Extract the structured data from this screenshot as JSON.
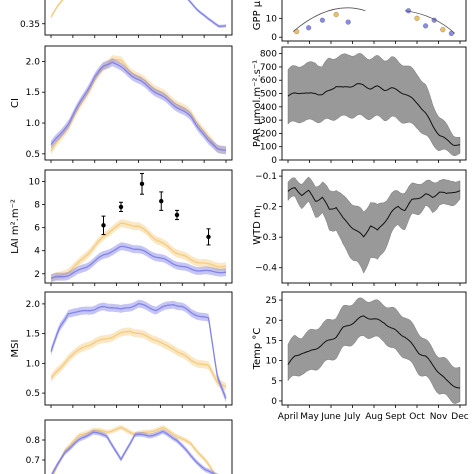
{
  "chart_data": [
    {
      "id": "p_top_left",
      "type": "line",
      "ylabel": "",
      "ytick_labels": [
        "0.35"
      ],
      "ylim": [
        0.3,
        0.5
      ],
      "yticks": [
        0.35
      ],
      "series": [
        {
          "color": "#f5c97a",
          "x": [
            0.0,
            0.04,
            0.08,
            0.12,
            0.16
          ],
          "y": [
            0.38,
            0.43,
            0.47,
            0.49,
            0.5
          ]
        },
        {
          "color": "#7f7fe8",
          "x": [
            0.72,
            0.78,
            0.84,
            0.9,
            0.96
          ],
          "y": [
            0.5,
            0.46,
            0.41,
            0.37,
            0.34
          ]
        }
      ]
    },
    {
      "id": "p_ci",
      "type": "line",
      "ylabel": "CI",
      "ylim": [
        0.4,
        2.25
      ],
      "yticks": [
        0.5,
        1.0,
        1.5,
        2.0
      ],
      "ytick_labels": [
        "0.5",
        "1.0",
        "1.5",
        "2.0"
      ],
      "series": [
        {
          "color": "#f5c97a",
          "x": [
            0.0,
            0.05,
            0.1,
            0.15,
            0.2,
            0.25,
            0.3,
            0.35,
            0.4,
            0.45,
            0.5,
            0.55,
            0.6,
            0.65,
            0.7,
            0.75,
            0.8,
            0.85,
            0.9,
            0.95,
            1.0
          ],
          "y": [
            0.55,
            0.75,
            0.95,
            1.2,
            1.45,
            1.7,
            1.9,
            2.05,
            2.0,
            1.85,
            1.75,
            1.65,
            1.55,
            1.45,
            1.35,
            1.25,
            1.15,
            0.95,
            0.75,
            0.6,
            0.55
          ]
        },
        {
          "color": "#7f7fe8",
          "x": [
            0.0,
            0.05,
            0.1,
            0.15,
            0.2,
            0.25,
            0.3,
            0.35,
            0.4,
            0.45,
            0.5,
            0.55,
            0.6,
            0.65,
            0.7,
            0.75,
            0.8,
            0.85,
            0.9,
            0.95,
            1.0
          ],
          "y": [
            0.65,
            0.8,
            1.0,
            1.25,
            1.5,
            1.75,
            1.92,
            2.0,
            1.9,
            1.8,
            1.7,
            1.6,
            1.5,
            1.4,
            1.3,
            1.2,
            1.1,
            0.9,
            0.7,
            0.6,
            0.55
          ]
        }
      ]
    },
    {
      "id": "p_lai",
      "type": "line",
      "ylabel": "LAI m².m⁻²",
      "ylim": [
        1.2,
        11
      ],
      "yticks": [
        2,
        4,
        6,
        8,
        10
      ],
      "ytick_labels": [
        "2",
        "4",
        "6",
        "8",
        "10"
      ],
      "series": [
        {
          "color": "#f5c97a",
          "x": [
            0.0,
            0.05,
            0.1,
            0.15,
            0.2,
            0.25,
            0.3,
            0.35,
            0.4,
            0.45,
            0.5,
            0.55,
            0.6,
            0.65,
            0.7,
            0.75,
            0.8,
            0.85,
            0.9,
            0.95,
            1.0
          ],
          "y": [
            1.6,
            1.8,
            2.2,
            2.8,
            3.6,
            4.4,
            5.2,
            5.9,
            6.3,
            6.3,
            6.1,
            5.6,
            5.0,
            4.5,
            4.0,
            3.6,
            3.2,
            3.0,
            2.8,
            2.7,
            2.6
          ]
        },
        {
          "color": "#7f7fe8",
          "x": [
            0.0,
            0.05,
            0.1,
            0.15,
            0.2,
            0.25,
            0.3,
            0.35,
            0.4,
            0.45,
            0.5,
            0.55,
            0.6,
            0.65,
            0.7,
            0.75,
            0.8,
            0.85,
            0.9,
            0.95,
            1.0
          ],
          "y": [
            1.6,
            1.7,
            1.9,
            2.2,
            2.6,
            3.1,
            3.6,
            4.0,
            4.3,
            4.3,
            4.1,
            3.8,
            3.5,
            3.2,
            2.9,
            2.6,
            2.4,
            2.3,
            2.2,
            2.2,
            2.1
          ]
        }
      ],
      "errorbars": {
        "x": [
          0.3,
          0.4,
          0.52,
          0.63,
          0.72,
          0.9
        ],
        "y": [
          6.2,
          7.8,
          9.8,
          8.3,
          7.1,
          5.2
        ],
        "err": [
          0.8,
          0.4,
          0.9,
          0.8,
          0.4,
          0.7
        ]
      }
    },
    {
      "id": "p_msi",
      "type": "line",
      "ylabel": "MSI",
      "ylim": [
        0.3,
        2.2
      ],
      "yticks": [
        0.5,
        1.0,
        1.5,
        2.0
      ],
      "ytick_labels": [
        "0.5",
        "1.0",
        "1.5",
        "2.0"
      ],
      "series": [
        {
          "color": "#f5c97a",
          "x": [
            0.0,
            0.05,
            0.1,
            0.15,
            0.2,
            0.25,
            0.3,
            0.35,
            0.4,
            0.45,
            0.5,
            0.55,
            0.6,
            0.65,
            0.7,
            0.75,
            0.8,
            0.85,
            0.9,
            0.95,
            1.0
          ],
          "y": [
            0.75,
            0.9,
            1.1,
            1.2,
            1.3,
            1.35,
            1.4,
            1.45,
            1.5,
            1.55,
            1.5,
            1.45,
            1.4,
            1.3,
            1.25,
            1.15,
            1.05,
            1.0,
            0.95,
            0.7,
            0.6
          ]
        },
        {
          "color": "#7f7fe8",
          "x": [
            0.0,
            0.05,
            0.1,
            0.15,
            0.2,
            0.25,
            0.3,
            0.35,
            0.4,
            0.45,
            0.5,
            0.55,
            0.6,
            0.65,
            0.7,
            0.75,
            0.8,
            0.85,
            0.9,
            0.95,
            1.0
          ],
          "y": [
            1.2,
            1.6,
            1.85,
            1.85,
            1.9,
            1.9,
            1.95,
            1.95,
            1.9,
            1.95,
            2.0,
            1.95,
            1.9,
            1.95,
            2.0,
            1.95,
            1.85,
            1.8,
            1.75,
            0.8,
            0.4
          ]
        }
      ]
    },
    {
      "id": "p_bottom_left",
      "type": "line",
      "ylabel": "",
      "ylim": [
        0.55,
        0.9
      ],
      "yticks": [
        0.6,
        0.7,
        0.8
      ],
      "ytick_labels": [
        "0.6",
        "0.7",
        "0.8"
      ],
      "series": [
        {
          "color": "#f5c97a",
          "x": [
            0.0,
            0.08,
            0.16,
            0.24,
            0.32,
            0.4,
            0.48,
            0.56,
            0.64,
            0.72,
            0.8,
            0.88,
            0.96,
            1.0
          ],
          "y": [
            0.6,
            0.75,
            0.82,
            0.85,
            0.84,
            0.86,
            0.83,
            0.84,
            0.86,
            0.82,
            0.78,
            0.7,
            0.6,
            0.56
          ]
        },
        {
          "color": "#7f7fe8",
          "x": [
            0.0,
            0.08,
            0.16,
            0.24,
            0.32,
            0.4,
            0.48,
            0.56,
            0.64,
            0.72,
            0.8,
            0.88,
            0.96,
            1.0
          ],
          "y": [
            0.62,
            0.74,
            0.8,
            0.84,
            0.82,
            0.7,
            0.83,
            0.82,
            0.84,
            0.8,
            0.72,
            0.65,
            0.62,
            0.58
          ]
        }
      ]
    },
    {
      "id": "p_gpp",
      "type": "scatter",
      "ylabel": "GPP μ",
      "ylim": [
        -2,
        25
      ],
      "yticks": [
        0,
        10
      ],
      "ytick_labels": [
        "0",
        "10"
      ]
    },
    {
      "id": "p_par",
      "type": "area",
      "ylabel": "PAR μmol.m⁻².s⁻¹",
      "ylim": [
        0,
        850
      ],
      "yticks": [
        0,
        100,
        200,
        300,
        400,
        500,
        600,
        700,
        800
      ],
      "ytick_labels": [
        "0",
        "100",
        "200",
        "300",
        "400",
        "500",
        "600",
        "700",
        "800"
      ],
      "x": [
        0,
        0.04,
        0.08,
        0.12,
        0.16,
        0.2,
        0.24,
        0.28,
        0.32,
        0.36,
        0.4,
        0.44,
        0.48,
        0.52,
        0.56,
        0.6,
        0.64,
        0.68,
        0.72,
        0.76,
        0.8,
        0.84,
        0.88,
        0.92,
        0.96,
        1.0
      ],
      "mean": [
        480,
        500,
        510,
        495,
        505,
        490,
        520,
        560,
        540,
        555,
        570,
        560,
        540,
        550,
        530,
        540,
        520,
        500,
        460,
        420,
        350,
        260,
        190,
        150,
        120,
        110
      ],
      "upper": [
        680,
        700,
        720,
        720,
        740,
        700,
        760,
        780,
        780,
        800,
        790,
        780,
        770,
        770,
        760,
        770,
        740,
        720,
        680,
        640,
        560,
        420,
        330,
        260,
        200,
        160
      ],
      "lower": [
        270,
        280,
        300,
        290,
        300,
        290,
        300,
        320,
        320,
        330,
        330,
        320,
        320,
        320,
        310,
        320,
        300,
        290,
        260,
        240,
        180,
        120,
        80,
        60,
        50,
        40
      ]
    },
    {
      "id": "p_wtd",
      "type": "area",
      "ylabel": "WTD m",
      "ylim": [
        -0.45,
        -0.08
      ],
      "yticks": [
        -0.4,
        -0.3,
        -0.2,
        -0.1
      ],
      "ytick_labels": [
        "−0.4",
        "−0.3",
        "−0.2",
        "−0.1"
      ],
      "x": [
        0,
        0.04,
        0.08,
        0.12,
        0.16,
        0.2,
        0.24,
        0.28,
        0.32,
        0.36,
        0.4,
        0.44,
        0.48,
        0.52,
        0.56,
        0.6,
        0.64,
        0.68,
        0.72,
        0.76,
        0.8,
        0.84,
        0.88,
        0.92,
        0.96,
        1.0
      ],
      "mean": [
        -0.15,
        -0.14,
        -0.16,
        -0.15,
        -0.18,
        -0.17,
        -0.21,
        -0.2,
        -0.24,
        -0.26,
        -0.28,
        -0.3,
        -0.26,
        -0.28,
        -0.25,
        -0.22,
        -0.2,
        -0.21,
        -0.18,
        -0.17,
        -0.16,
        -0.17,
        -0.15,
        -0.16,
        -0.15,
        -0.15
      ],
      "upper": [
        -0.12,
        -0.11,
        -0.12,
        -0.11,
        -0.13,
        -0.12,
        -0.15,
        -0.14,
        -0.17,
        -0.18,
        -0.2,
        -0.22,
        -0.18,
        -0.2,
        -0.18,
        -0.16,
        -0.15,
        -0.15,
        -0.13,
        -0.12,
        -0.12,
        -0.12,
        -0.11,
        -0.12,
        -0.11,
        -0.12
      ],
      "lower": [
        -0.18,
        -0.17,
        -0.2,
        -0.19,
        -0.23,
        -0.22,
        -0.28,
        -0.27,
        -0.33,
        -0.36,
        -0.38,
        -0.42,
        -0.36,
        -0.38,
        -0.34,
        -0.29,
        -0.26,
        -0.27,
        -0.23,
        -0.22,
        -0.2,
        -0.22,
        -0.19,
        -0.2,
        -0.19,
        -0.18
      ]
    },
    {
      "id": "p_temp",
      "type": "area",
      "ylabel": "Temp °C",
      "xlabel": "",
      "ylim": [
        -1,
        27
      ],
      "yticks": [
        0,
        5,
        10,
        15,
        20,
        25
      ],
      "ytick_labels": [
        "0",
        "5",
        "10",
        "15",
        "20",
        "25"
      ],
      "categories": [
        "April",
        "May",
        "June",
        "July",
        "Aug",
        "Sept",
        "Oct",
        "Nov",
        "Dec"
      ],
      "x": [
        0,
        0.04,
        0.08,
        0.12,
        0.16,
        0.2,
        0.24,
        0.28,
        0.32,
        0.36,
        0.4,
        0.44,
        0.48,
        0.52,
        0.56,
        0.6,
        0.64,
        0.68,
        0.72,
        0.76,
        0.8,
        0.84,
        0.88,
        0.92,
        0.96,
        1.0
      ],
      "mean": [
        9,
        11,
        12,
        12,
        13,
        14,
        15,
        16,
        18,
        19,
        20,
        21,
        20.5,
        20,
        19.5,
        18,
        17,
        16,
        14,
        12,
        11,
        9,
        7,
        5,
        4,
        3
      ],
      "upper": [
        14,
        16,
        16,
        17,
        18,
        19,
        20,
        21,
        23,
        24,
        25,
        25,
        25,
        24.5,
        24,
        23,
        22,
        21,
        19,
        17,
        15,
        13,
        11,
        10,
        9,
        8
      ],
      "lower": [
        5,
        6,
        7,
        7,
        8,
        9,
        10,
        11,
        13,
        14,
        15,
        16,
        16,
        15.5,
        15,
        13,
        12,
        11,
        9,
        7,
        6,
        4,
        2,
        1,
        0,
        -0.5
      ]
    }
  ]
}
